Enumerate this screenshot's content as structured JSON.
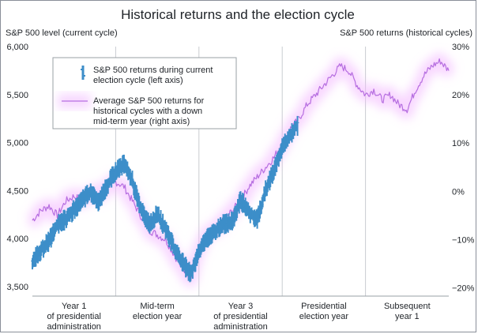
{
  "chart_data": {
    "type": "line",
    "title": "Historical returns and the election cycle",
    "ylabel_left": "S&P 500 level (current cycle)",
    "ylabel_right": "S&P 500 returns (historical cycles)",
    "ylim_left": [
      3400,
      6000
    ],
    "yticks_left": [
      "3,500",
      "4,000",
      "4,500",
      "5,000",
      "5,500",
      "6,000"
    ],
    "ylim_right": [
      -21.7,
      30
    ],
    "yticks_right": [
      "−20%",
      "−10%",
      "0%",
      "10%",
      "20%",
      "30%"
    ],
    "xlim": [
      0,
      5
    ],
    "grid": "vertical",
    "legend_placement": "top-left",
    "categories": [
      [
        "Year 1",
        "of presidential",
        "administration"
      ],
      [
        "Mid-term",
        "election year"
      ],
      [
        "Year 3",
        "of presidential",
        "administration"
      ],
      [
        "Presidential",
        "election year"
      ],
      [
        "Subsequent",
        "year 1"
      ]
    ],
    "series": [
      {
        "name": "S&P 500 returns during current election cycle (left axis)",
        "axis": "left",
        "style": "ohlc",
        "color": "#3d8ec9",
        "x": [
          0.0,
          0.1,
          0.2,
          0.3,
          0.4,
          0.5,
          0.6,
          0.7,
          0.8,
          0.9,
          1.0,
          1.1,
          1.2,
          1.3,
          1.4,
          1.5,
          1.6,
          1.7,
          1.8,
          1.9,
          2.0,
          2.1,
          2.2,
          2.3,
          2.4,
          2.5,
          2.6,
          2.7,
          2.8,
          2.9,
          3.0,
          3.2
        ],
        "y": [
          3750,
          3880,
          3970,
          4150,
          4200,
          4300,
          4400,
          4490,
          4380,
          4560,
          4700,
          4770,
          4600,
          4300,
          4150,
          4250,
          4100,
          3900,
          3750,
          3630,
          3850,
          4000,
          4080,
          4150,
          4180,
          4400,
          4280,
          4200,
          4500,
          4700,
          4950,
          5200
        ]
      },
      {
        "name": "Average S&P 500 returns for historical cycles with a down mid-term year (right axis)",
        "axis": "right",
        "style": "line",
        "color": "#b66ee0",
        "x": [
          0.0,
          0.1,
          0.2,
          0.3,
          0.4,
          0.5,
          0.6,
          0.7,
          0.8,
          0.9,
          1.0,
          1.1,
          1.2,
          1.3,
          1.4,
          1.5,
          1.6,
          1.7,
          1.8,
          1.9,
          2.0,
          2.1,
          2.2,
          2.3,
          2.4,
          2.5,
          2.6,
          2.7,
          2.8,
          2.9,
          3.0,
          3.1,
          3.2,
          3.3,
          3.4,
          3.5,
          3.6,
          3.7,
          3.8,
          3.9,
          4.0,
          4.1,
          4.2,
          4.3,
          4.4,
          4.5,
          4.6,
          4.7,
          4.8,
          4.9,
          5.0
        ],
        "y": [
          -6,
          -4,
          -3,
          -5,
          -2,
          -1,
          -2,
          0,
          -1,
          1,
          2,
          1,
          -2,
          -5,
          -8,
          -9,
          -10,
          -13,
          -16,
          -18,
          -12,
          -9,
          -8,
          -6,
          -4,
          -2,
          1,
          3,
          5,
          7,
          10,
          13,
          15,
          18,
          20,
          22,
          24,
          26,
          25,
          22,
          20,
          21,
          19,
          20,
          18,
          17,
          21,
          24,
          26,
          27,
          25
        ]
      }
    ]
  },
  "legend": {
    "item1": [
      "S&P 500 returns during current",
      "election cycle (left axis)"
    ],
    "item2": [
      "Average S&P 500 returns for",
      "historical cycles with a down",
      "mid-term year (right axis)"
    ]
  }
}
